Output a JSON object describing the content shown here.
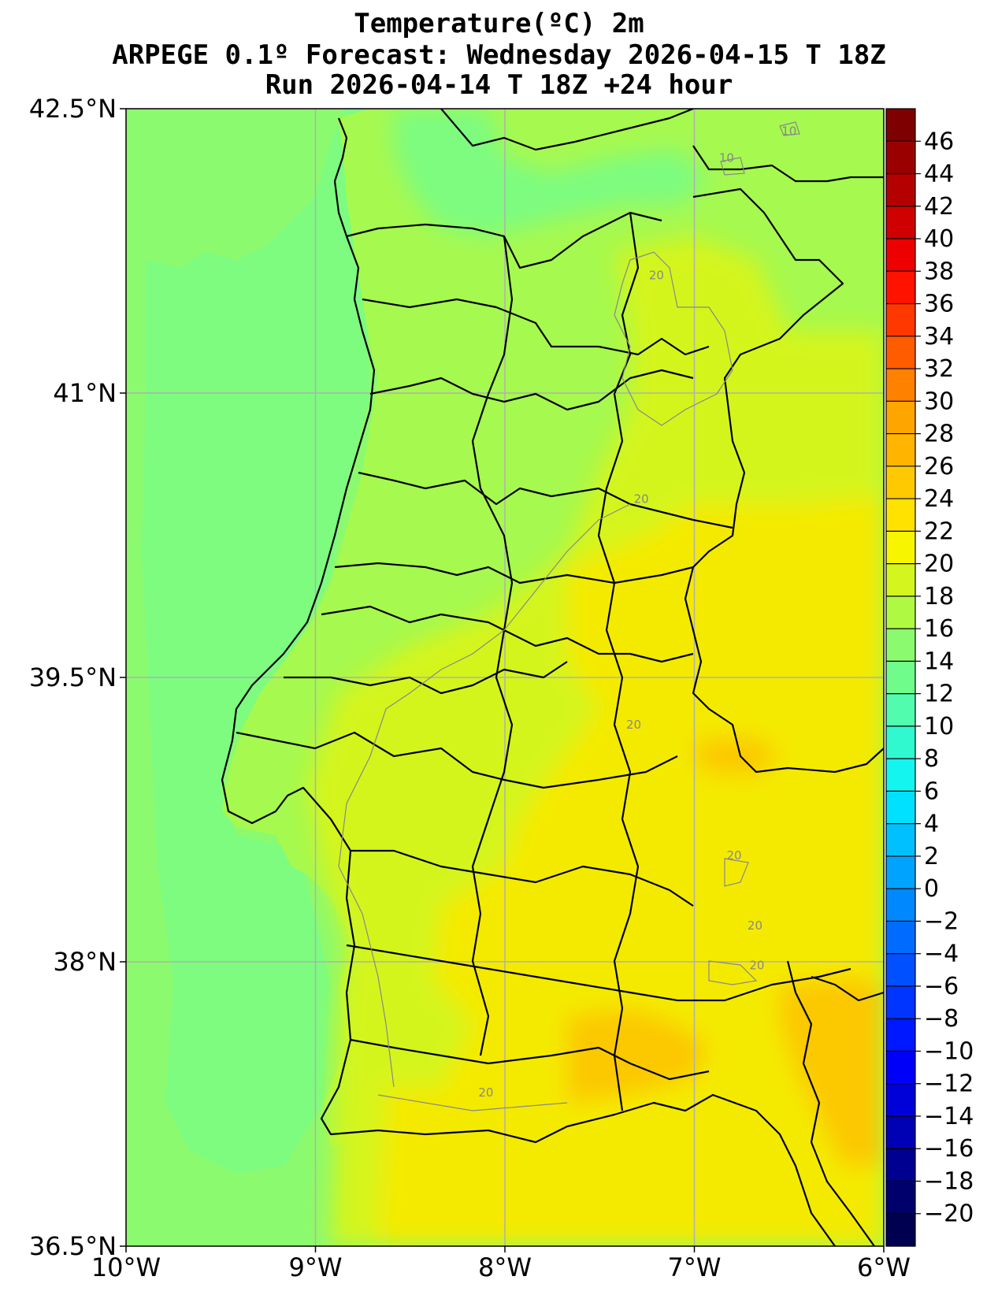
{
  "title": {
    "line1": "Temperature(ºC) 2m",
    "line2": "ARPEGE 0.1º Forecast: Wednesday 2026-04-15 T 18Z",
    "line3": "Run 2026-04-14 T 18Z +24 hour"
  },
  "map": {
    "lon_range": [
      -10,
      -6
    ],
    "lat_range": [
      36.5,
      42.5
    ],
    "x_ticks": [
      "10°W",
      "9°W",
      "8°W",
      "7°W",
      "6°W"
    ],
    "y_ticks": [
      "42.5°N",
      "41°N",
      "39.5°N",
      "38°N",
      "36.5°N"
    ],
    "grid": true,
    "contour_labels": [
      {
        "text": "10",
        "lon": -6.5,
        "lat": 42.36
      },
      {
        "text": "10",
        "lon": -6.83,
        "lat": 42.22
      },
      {
        "text": "20",
        "lon": -7.2,
        "lat": 41.6
      },
      {
        "text": "20",
        "lon": -7.28,
        "lat": 40.42
      },
      {
        "text": "20",
        "lon": -7.32,
        "lat": 39.23
      },
      {
        "text": "20",
        "lon": -6.79,
        "lat": 38.54
      },
      {
        "text": "20",
        "lon": -6.68,
        "lat": 38.17
      },
      {
        "text": "20",
        "lon": -6.67,
        "lat": 37.96
      },
      {
        "text": "20",
        "lon": -8.1,
        "lat": 37.29
      }
    ],
    "colors": {
      "ocean": "#8cfa6e",
      "coastal_ocean": "#7dfc80",
      "land_north": "#a6f94f",
      "land_mid": "#d4f51d",
      "land_south": "#f4ea00",
      "land_hot": "#fcc800",
      "border": "#000000",
      "grid": "#b0b0b0"
    }
  },
  "colorbar": {
    "ticks": [
      "46",
      "44",
      "42",
      "40",
      "38",
      "36",
      "34",
      "32",
      "30",
      "28",
      "26",
      "24",
      "22",
      "20",
      "18",
      "16",
      "14",
      "12",
      "10",
      "8",
      "6",
      "4",
      "2",
      "0",
      "−2",
      "−4",
      "−6",
      "−8",
      "−10",
      "−12",
      "−14",
      "−16",
      "−18",
      "−20"
    ],
    "colors": [
      "#7f0000",
      "#9a0000",
      "#b50000",
      "#d10000",
      "#ed0000",
      "#ff1300",
      "#ff3800",
      "#ff5c00",
      "#ff8100",
      "#ffa500",
      "#ffb400",
      "#ffc900",
      "#ffe200",
      "#f8f500",
      "#d4f51d",
      "#b0f942",
      "#8cfa6e",
      "#6ffc8b",
      "#52fcaf",
      "#30f9d0",
      "#14f5f0",
      "#00e0ff",
      "#00c0ff",
      "#00a4ff",
      "#0088ff",
      "#006cff",
      "#0050ff",
      "#0034ff",
      "#0018ff",
      "#0000fa",
      "#0000d8",
      "#0000b4",
      "#000090",
      "#00006c",
      "#000050"
    ]
  }
}
